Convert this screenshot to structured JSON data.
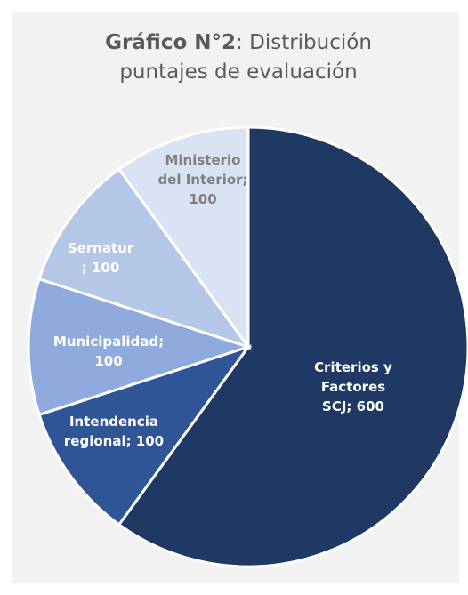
{
  "chart_data": {
    "type": "pie",
    "title": [
      "Gráfico N°2",
      ": Distribución puntajes de evaluación"
    ],
    "values": [
      600,
      100,
      100,
      100,
      100
    ],
    "value_labels": [
      "Criterios y Factores\nSCJ; 600",
      "Intendencia\nregional; 100",
      "Municipalidad;\n100",
      "Sernatur\n; 100",
      "Ministerio\ndel Interior;\n100"
    ],
    "colors": [
      "#203864",
      "#2f5597",
      "#8faadc",
      "#b4c7e7",
      "#dae3f3"
    ],
    "label_colors": [
      "#ffffff",
      "#ffffff",
      "#ffffff",
      "#ffffff",
      "#7f7f7f"
    ]
  }
}
